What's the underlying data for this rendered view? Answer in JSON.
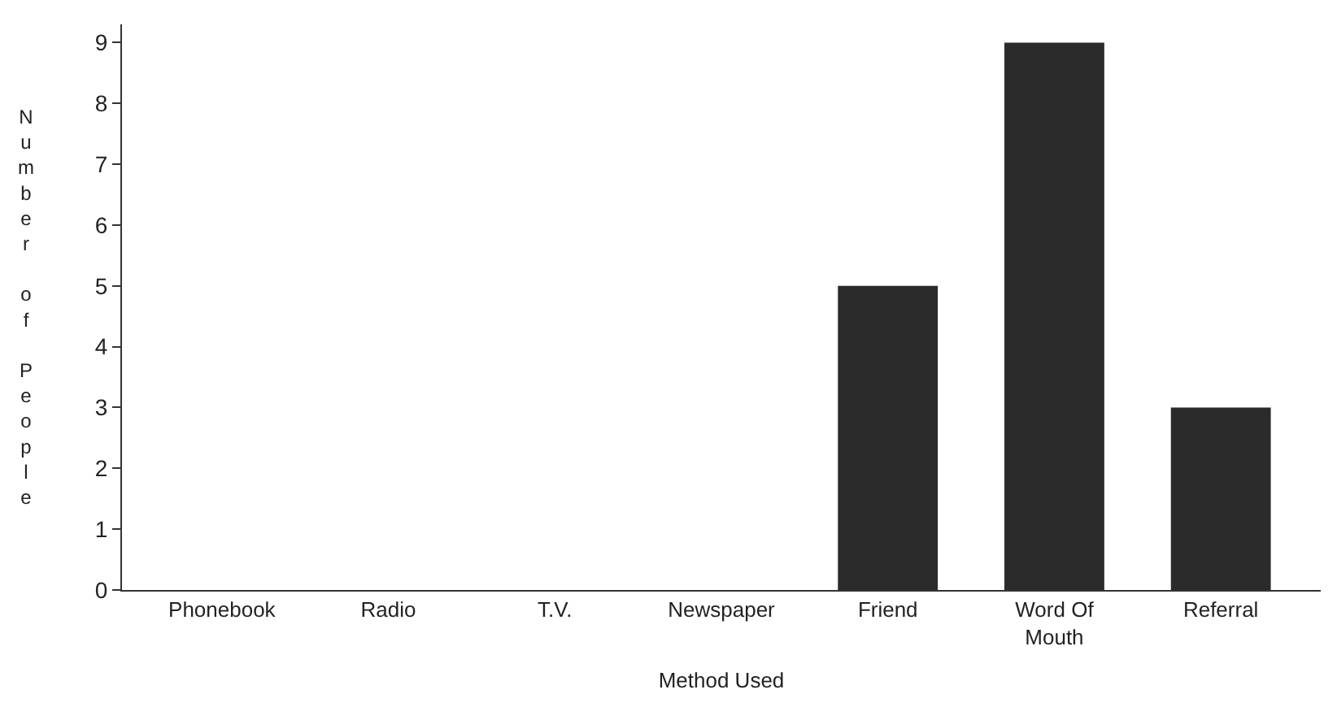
{
  "chart_data": {
    "type": "bar",
    "xlabel": "Method Used",
    "ylabel": "Number of People",
    "categories": [
      "Phonebook",
      "Radio",
      "T.V.",
      "Newspaper",
      "Friend",
      "Word Of Mouth",
      "Referral"
    ],
    "values": [
      0,
      0,
      0,
      0,
      5,
      9,
      3
    ],
    "color": "#2b2b2b",
    "ylim": [
      0,
      9.3
    ],
    "yticks": [
      0,
      1,
      2,
      3,
      4,
      5,
      6,
      7,
      8,
      9
    ]
  }
}
